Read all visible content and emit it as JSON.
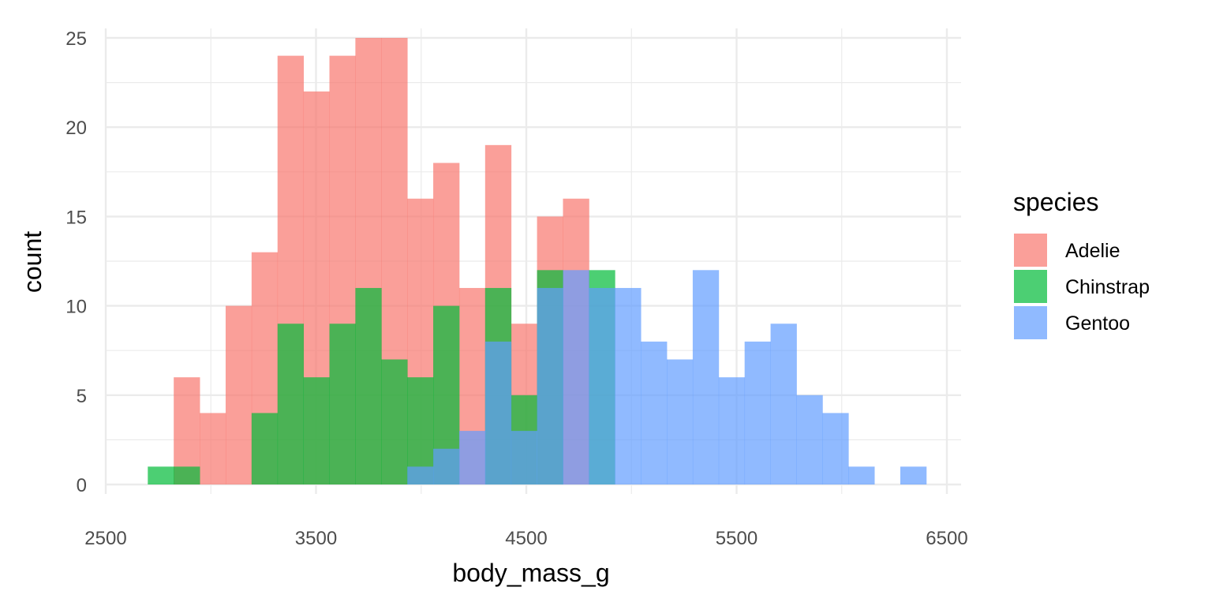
{
  "chart_data": {
    "type": "bar",
    "subtype": "histogram-overlay",
    "xlabel": "body_mass_g",
    "ylabel": "count",
    "xlim": [
      2500,
      6500
    ],
    "ylim": [
      0,
      25
    ],
    "x_ticks": [
      2500,
      3500,
      4500,
      5500,
      6500
    ],
    "y_ticks": [
      0,
      5,
      10,
      15,
      20,
      25
    ],
    "grid": true,
    "bin_width": 123.4,
    "bin_start": 2700,
    "bin_count": 30,
    "legend": {
      "title": "species",
      "position": "right"
    },
    "series": [
      {
        "name": "Adelie",
        "color": "#F8766D",
        "bins": [
          {
            "x": 2823.4,
            "count": 6
          },
          {
            "x": 2946.8,
            "count": 4
          },
          {
            "x": 3070.2,
            "count": 10
          },
          {
            "x": 3193.6,
            "count": 13
          },
          {
            "x": 3317.0,
            "count": 24
          },
          {
            "x": 3440.4,
            "count": 22
          },
          {
            "x": 3563.8,
            "count": 24
          },
          {
            "x": 3687.2,
            "count": 25
          },
          {
            "x": 3810.6,
            "count": 25
          },
          {
            "x": 3934.0,
            "count": 16
          },
          {
            "x": 4057.4,
            "count": 18
          },
          {
            "x": 4180.8,
            "count": 11
          },
          {
            "x": 4304.2,
            "count": 19
          },
          {
            "x": 4427.6,
            "count": 9
          },
          {
            "x": 4551.0,
            "count": 15
          },
          {
            "x": 4674.4,
            "count": 16
          }
        ]
      },
      {
        "name": "Chinstrap",
        "color": "#00BA38",
        "bins": [
          {
            "x": 2700.0,
            "count": 1
          },
          {
            "x": 2823.4,
            "count": 1
          },
          {
            "x": 3193.6,
            "count": 4
          },
          {
            "x": 3317.0,
            "count": 9
          },
          {
            "x": 3440.4,
            "count": 6
          },
          {
            "x": 3563.8,
            "count": 9
          },
          {
            "x": 3687.2,
            "count": 11
          },
          {
            "x": 3810.6,
            "count": 7
          },
          {
            "x": 3934.0,
            "count": 6
          },
          {
            "x": 4057.4,
            "count": 10
          },
          {
            "x": 4304.2,
            "count": 11
          },
          {
            "x": 4427.6,
            "count": 5
          },
          {
            "x": 4551.0,
            "count": 12
          },
          {
            "x": 4797.8,
            "count": 12
          }
        ]
      },
      {
        "name": "Gentoo",
        "color": "#619CFF",
        "bins": [
          {
            "x": 3934.0,
            "count": 1
          },
          {
            "x": 4057.4,
            "count": 2
          },
          {
            "x": 4180.8,
            "count": 3
          },
          {
            "x": 4304.2,
            "count": 8
          },
          {
            "x": 4427.6,
            "count": 3
          },
          {
            "x": 4551.0,
            "count": 11
          },
          {
            "x": 4674.4,
            "count": 12
          },
          {
            "x": 4797.8,
            "count": 11
          },
          {
            "x": 4921.2,
            "count": 11
          },
          {
            "x": 5044.6,
            "count": 8
          },
          {
            "x": 5168.0,
            "count": 7
          },
          {
            "x": 5291.4,
            "count": 12
          },
          {
            "x": 5414.8,
            "count": 6
          },
          {
            "x": 5538.2,
            "count": 8
          },
          {
            "x": 5661.6,
            "count": 9
          },
          {
            "x": 5785.0,
            "count": 5
          },
          {
            "x": 5908.4,
            "count": 4
          },
          {
            "x": 6031.8,
            "count": 1
          },
          {
            "x": 6278.6,
            "count": 1
          }
        ]
      }
    ],
    "bar_opacity": 0.7
  }
}
